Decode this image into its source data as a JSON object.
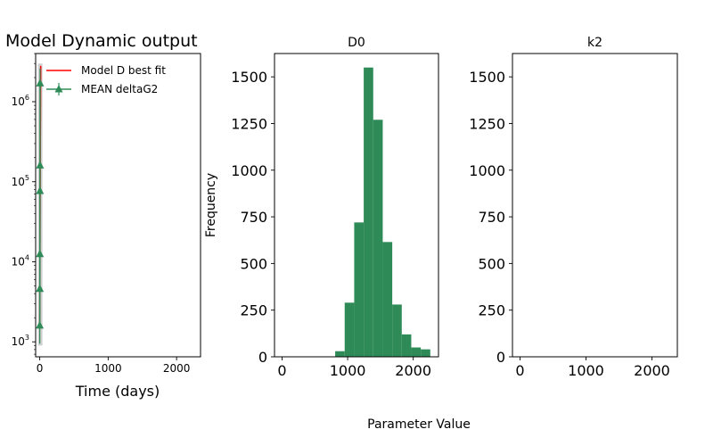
{
  "figure": {
    "xlabel_shared": "Parameter Value"
  },
  "chart_data": [
    {
      "type": "line",
      "title": "Model Dynamic output",
      "xlabel": "Time (days)",
      "ylabel": "",
      "xlim": [
        -60,
        2350
      ],
      "ylim": [
        650,
        4000000
      ],
      "yscale": "log",
      "xticks": [
        0,
        1000,
        2000
      ],
      "yticks": [
        {
          "value": 1000,
          "base": "10",
          "exp": "3"
        },
        {
          "value": 10000,
          "base": "10",
          "exp": "4"
        },
        {
          "value": 100000,
          "base": "10",
          "exp": "5"
        },
        {
          "value": 1000000,
          "base": "10",
          "exp": "6"
        }
      ],
      "legend_position": "upper-right",
      "grid": false,
      "series": [
        {
          "name": " Model D best fit",
          "style": "line",
          "color": "#ff0000",
          "x": [
            0,
            7,
            14
          ],
          "y": [
            1500,
            200000,
            2800000
          ]
        },
        {
          "name": "MEAN deltaG2",
          "style": "line-errorbar-triangle",
          "color": "#2e8b57",
          "x": [
            0,
            1,
            2,
            3,
            4,
            5
          ],
          "y": [
            1600,
            4600,
            12500,
            77000,
            160000,
            1700000
          ],
          "yerr_low": [
            650,
            650,
            3500,
            16000,
            35000,
            300000
          ],
          "yerr_high": [
            650,
            650,
            3500,
            16000,
            35000,
            900000
          ]
        }
      ]
    },
    {
      "type": "bar",
      "title": "D0",
      "xlabel": "",
      "ylabel": "Frequency",
      "xlim": [
        -115,
        2385
      ],
      "ylim": [
        0,
        1625
      ],
      "xticks": [
        0,
        1000,
        2000
      ],
      "yticks": [
        0,
        250,
        500,
        750,
        1000,
        1250,
        1500
      ],
      "color": "#2e8b57",
      "bin_edges": [
        810,
        955,
        1100,
        1245,
        1390,
        1535,
        1680,
        1825,
        1970,
        2115,
        2260
      ],
      "values": [
        30,
        290,
        720,
        1550,
        1270,
        615,
        280,
        120,
        50,
        40
      ]
    },
    {
      "type": "bar",
      "title": "k2",
      "xlabel": "",
      "ylabel": "",
      "xlim": [
        -115,
        2385
      ],
      "ylim": [
        0,
        1625
      ],
      "xticks": [
        0,
        1000,
        2000
      ],
      "yticks": [
        0,
        250,
        500,
        750,
        1000,
        1250,
        1500
      ],
      "color": "#2e8b57",
      "bin_edges": [],
      "values": []
    }
  ]
}
